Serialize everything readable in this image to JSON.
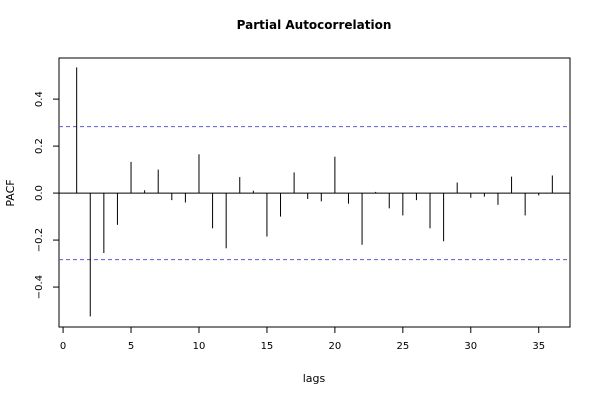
{
  "chart_data": {
    "type": "bar",
    "title": "Partial Autocorrelation",
    "xlabel": "lags",
    "ylabel": "PACF",
    "xlim": [
      -0.3,
      37.3
    ],
    "ylim": [
      -0.57,
      0.575
    ],
    "x_ticks": [
      0,
      5,
      10,
      15,
      20,
      25,
      30,
      35
    ],
    "y_ticks": [
      -0.4,
      -0.2,
      0.0,
      0.2,
      0.4
    ],
    "y_tick_labels": [
      "−0.4",
      "−0.2",
      "0.0",
      "0.2",
      "0.4"
    ],
    "confidence_bounds": [
      0.283,
      -0.283
    ],
    "confidence_color": "#5b5bd6",
    "lags": [
      1,
      2,
      3,
      4,
      5,
      6,
      7,
      8,
      9,
      10,
      11,
      12,
      13,
      14,
      15,
      16,
      17,
      18,
      19,
      20,
      21,
      22,
      23,
      24,
      25,
      26,
      27,
      28,
      29,
      30,
      31,
      32,
      33,
      34,
      35,
      36
    ],
    "values": [
      0.535,
      -0.525,
      -0.255,
      -0.135,
      0.133,
      0.012,
      0.1,
      -0.03,
      -0.04,
      0.165,
      -0.15,
      -0.235,
      0.068,
      0.01,
      -0.185,
      -0.1,
      0.088,
      -0.025,
      -0.035,
      0.155,
      -0.045,
      -0.22,
      0.005,
      -0.065,
      -0.095,
      -0.03,
      -0.15,
      -0.205,
      0.045,
      -0.02,
      -0.015,
      -0.05,
      0.07,
      -0.095,
      -0.01,
      0.075
    ],
    "grid": false,
    "legend": "none"
  }
}
